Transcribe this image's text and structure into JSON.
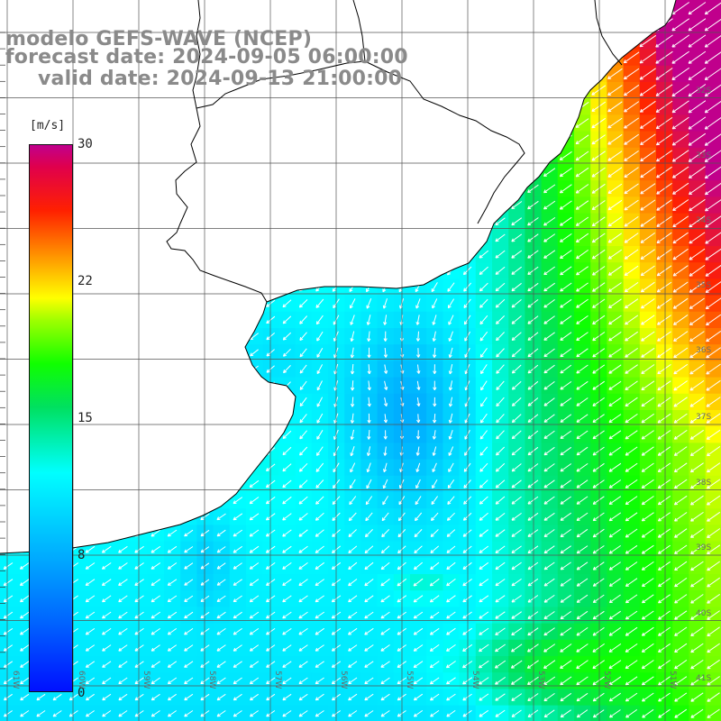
{
  "title": {
    "line1": "modelo GEFS-WAVE (NCEP)",
    "line2": "forecast date: 2024-09-05 06:00:00",
    "line3": "valid date: 2024-09-13 21:00:00"
  },
  "colorbar": {
    "unit": "[m/s]",
    "ticks": [
      "30",
      "22",
      "15",
      "8",
      "0"
    ],
    "min": 0,
    "max": 30
  },
  "lat_labels": [
    "32S",
    "33S",
    "34S",
    "35S",
    "36S",
    "37S",
    "38S",
    "39S",
    "40S",
    "41S"
  ],
  "lon_labels": [
    "61W",
    "60W",
    "59W",
    "58W",
    "57W",
    "56W",
    "55W",
    "54W",
    "53W",
    "52W",
    "51W"
  ],
  "colors": {
    "land": "#ffffff",
    "coast": "#000000",
    "grid": "#555555",
    "arrow": "#ffffff",
    "title": "#8a8a8a"
  },
  "map_extent": {
    "lon_min": -61,
    "lon_max": -50,
    "lat_min": -41,
    "lat_max": -30
  }
}
